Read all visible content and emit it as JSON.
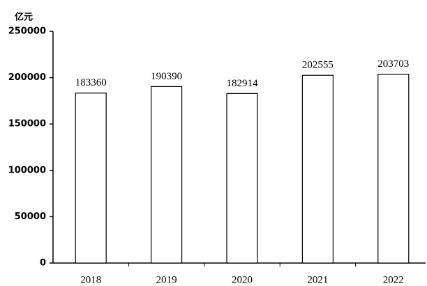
{
  "chart_data": {
    "type": "bar",
    "y_label": "亿元",
    "categories": [
      "2018",
      "2019",
      "2020",
      "2021",
      "2022"
    ],
    "values": [
      183360,
      190390,
      182914,
      202555,
      203703
    ],
    "color": "#ffffff",
    "edgecolor": "#000000",
    "ylim": [
      0,
      250000
    ],
    "yticks": [
      0,
      50000,
      100000,
      150000,
      200000,
      250000
    ],
    "grid": false
  }
}
